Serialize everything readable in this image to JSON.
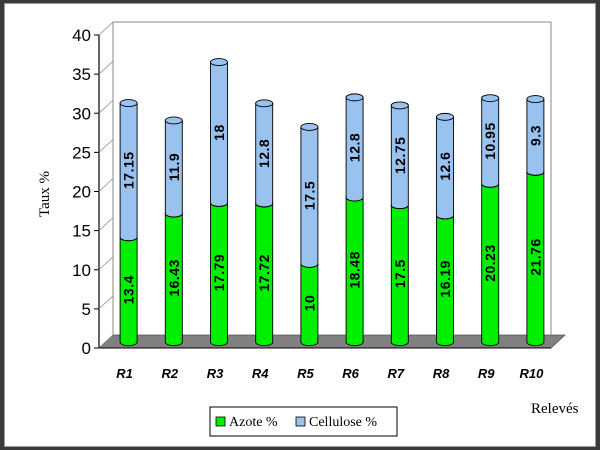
{
  "chart_data": {
    "type": "bar",
    "stacked": true,
    "style": "3d-cylinder",
    "categories": [
      "R1",
      "R2",
      "R3",
      "R4",
      "R5",
      "R6",
      "R7",
      "R8",
      "R9",
      "R10"
    ],
    "series": [
      {
        "name": "Azote %",
        "color": "#00ee00",
        "values": [
          13.4,
          16.43,
          17.79,
          17.72,
          10,
          18.48,
          17.5,
          16.19,
          20.23,
          21.76
        ]
      },
      {
        "name": "Cellulose %",
        "color": "#99c2ee",
        "values": [
          17.15,
          11.9,
          18,
          12.8,
          17.5,
          12.8,
          12.75,
          12.6,
          10.95,
          9.3
        ]
      }
    ],
    "ylabel": "Taux %",
    "xlabel": "Relevés",
    "ylim": [
      0,
      40
    ],
    "yticks": [
      0,
      5,
      10,
      15,
      20,
      25,
      30,
      35,
      40
    ],
    "legend": "bottom-center",
    "grid": false,
    "floor_color": "#808080"
  }
}
